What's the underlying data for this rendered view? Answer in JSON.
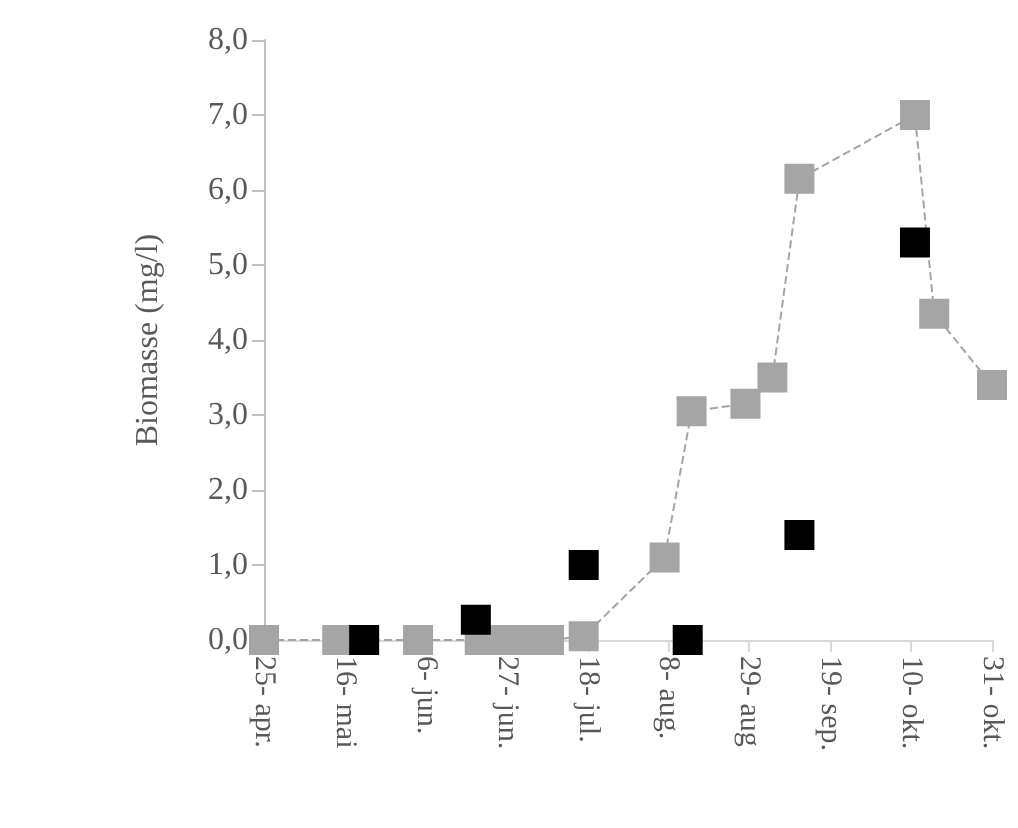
{
  "chart_data": {
    "type": "scatter",
    "ylabel": "Biomasse (mg/l)",
    "xlim": [
      "--04-25",
      "--10-31"
    ],
    "xticks": [
      {
        "value": "--04-25",
        "label": "25- apr."
      },
      {
        "value": "--05-16",
        "label": "16- mai"
      },
      {
        "value": "--06-06",
        "label": "6- jun."
      },
      {
        "value": "--06-27",
        "label": "27- jun."
      },
      {
        "value": "--07-18",
        "label": "18- jul."
      },
      {
        "value": "--08-08",
        "label": "8- aug."
      },
      {
        "value": "--08-29",
        "label": "29- aug"
      },
      {
        "value": "--09-19",
        "label": "19- sep."
      },
      {
        "value": "--10-10",
        "label": "10- okt."
      },
      {
        "value": "--10-31",
        "label": "31- okt."
      }
    ],
    "ylim": [
      0,
      8
    ],
    "yticks": [
      {
        "value": 0,
        "label": "0,0"
      },
      {
        "value": 1,
        "label": "1,0"
      },
      {
        "value": 2,
        "label": "2,0"
      },
      {
        "value": 3,
        "label": "3,0"
      },
      {
        "value": 4,
        "label": "4,0"
      },
      {
        "value": 5,
        "label": "5,0"
      },
      {
        "value": 6,
        "label": "6,0"
      },
      {
        "value": 7,
        "label": "7,0"
      },
      {
        "value": 8,
        "label": "8,0"
      }
    ],
    "grid": false,
    "marker": "square",
    "series": [
      {
        "type": "line",
        "line_style": "dashed",
        "color": "#a5a5a5",
        "x": [
          "--04-25",
          "--05-14",
          "--06-04",
          "--06-20",
          "--06-27",
          "--07-02",
          "--07-08",
          "--07-17",
          "--08-07",
          "--08-14",
          "--08-28",
          "--09-04",
          "--09-11",
          "--10-11",
          "--10-16",
          "--10-31"
        ],
        "values": [
          0,
          0,
          0,
          0,
          0,
          0,
          0,
          0.05,
          1.1,
          3.05,
          3.15,
          3.5,
          6.15,
          7.0,
          4.35,
          3.4
        ]
      },
      {
        "color": "#000000",
        "x": [
          "--05-21",
          "--06-19",
          "--07-17",
          "--08-13",
          "--09-11",
          "--10-11"
        ],
        "values": [
          0,
          0.27,
          1.0,
          0,
          1.4,
          5.3
        ]
      }
    ]
  }
}
